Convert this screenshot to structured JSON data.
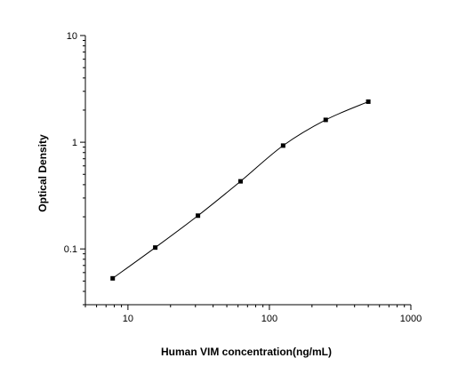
{
  "chart_data": {
    "type": "scatter",
    "title": "",
    "xlabel": "Human VIM concentration(ng/mL)",
    "ylabel": "Optical Density",
    "x_scale": "log",
    "y_scale": "log",
    "xlim": [
      5,
      1000
    ],
    "ylim": [
      0.03,
      10
    ],
    "x_ticks": [
      {
        "value": 10,
        "label": "10"
      },
      {
        "value": 100,
        "label": "100"
      },
      {
        "value": 1000,
        "label": "1000"
      }
    ],
    "y_ticks": [
      {
        "value": 0.1,
        "label": "0.1"
      },
      {
        "value": 1,
        "label": "1"
      },
      {
        "value": 10,
        "label": "10"
      }
    ],
    "grid": false,
    "legend": "none",
    "series": [
      {
        "marker": "square",
        "fit_line": true,
        "points": [
          {
            "x": 7.8,
            "y": 0.053
          },
          {
            "x": 15.6,
            "y": 0.103
          },
          {
            "x": 31.25,
            "y": 0.205
          },
          {
            "x": 62.5,
            "y": 0.43
          },
          {
            "x": 125,
            "y": 0.93
          },
          {
            "x": 250,
            "y": 1.62
          },
          {
            "x": 500,
            "y": 2.4
          }
        ]
      }
    ],
    "color": "#000000"
  }
}
